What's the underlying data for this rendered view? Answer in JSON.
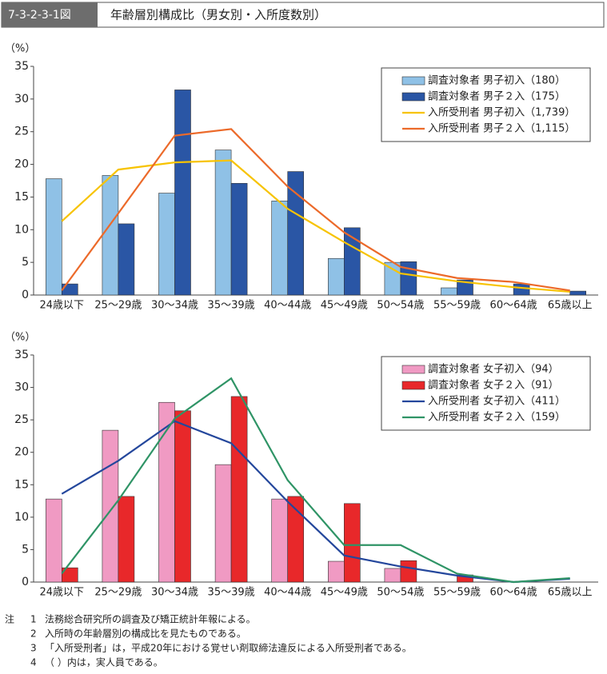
{
  "header": {
    "figure_number": "7-3-2-3-1図",
    "title": "年齢層別構成比（男女別・入所度数別）"
  },
  "chart_data": [
    {
      "type": "combo",
      "y_label": "（%）",
      "categories": [
        "24歳以下",
        "25～29歳",
        "30～34歳",
        "35～39歳",
        "40～44歳",
        "45～49歳",
        "50～54歳",
        "55～59歳",
        "60～64歳",
        "65歳以上"
      ],
      "series": [
        {
          "name": "調査対象者 男子初入（180）",
          "type": "bar",
          "color": "#8fc1e6",
          "values": [
            17.8,
            18.3,
            15.6,
            22.2,
            14.4,
            5.6,
            5.0,
            1.1,
            0,
            0
          ]
        },
        {
          "name": "調査対象者 男子２入（175）",
          "type": "bar",
          "color": "#2a56a5",
          "values": [
            1.7,
            10.9,
            31.4,
            17.1,
            18.9,
            10.3,
            5.1,
            2.3,
            1.7,
            0.6
          ]
        },
        {
          "name": "入所受刑者 男子初入（1,739）",
          "type": "line",
          "color": "#f7c300",
          "values": [
            11.3,
            19.2,
            20.3,
            20.6,
            13.2,
            8.1,
            3.3,
            2.1,
            1.2,
            0.5
          ]
        },
        {
          "name": "入所受刑者 男子２入（1,115）",
          "type": "line",
          "color": "#ec6a2a",
          "values": [
            0.7,
            12.5,
            24.4,
            25.4,
            16.6,
            9.6,
            4.3,
            2.6,
            2.0,
            0.7
          ]
        }
      ],
      "ylim": [
        0,
        35
      ],
      "yticks": [
        0,
        5,
        10,
        15,
        20,
        25,
        30,
        35
      ],
      "legend": "upper right"
    },
    {
      "type": "combo",
      "y_label": "（%）",
      "categories": [
        "24歳以下",
        "25～29歳",
        "30～34歳",
        "35～39歳",
        "40～44歳",
        "45～49歳",
        "50～54歳",
        "55～59歳",
        "60～64歳",
        "65歳以上"
      ],
      "series": [
        {
          "name": "調査対象者 女子初入（94）",
          "type": "bar",
          "color": "#f09ac3",
          "values": [
            12.8,
            23.4,
            27.7,
            18.1,
            12.8,
            3.2,
            2.1,
            0,
            0,
            0
          ]
        },
        {
          "name": "調査対象者 女子２入（91）",
          "type": "bar",
          "color": "#e8282a",
          "values": [
            2.2,
            13.2,
            26.4,
            28.6,
            13.2,
            12.1,
            3.3,
            1.1,
            0,
            0
          ]
        },
        {
          "name": "入所受刑者 女子初入（411）",
          "type": "line",
          "color": "#24479c",
          "values": [
            13.6,
            18.7,
            24.8,
            21.4,
            12.4,
            4.1,
            2.4,
            1.0,
            0,
            0.5
          ]
        },
        {
          "name": "入所受刑者 女子２入（159）",
          "type": "line",
          "color": "#2f9466",
          "values": [
            1.3,
            12.6,
            25.2,
            31.4,
            15.7,
            5.7,
            5.7,
            1.3,
            0,
            0.6
          ]
        }
      ],
      "ylim": [
        0,
        35
      ],
      "yticks": [
        0,
        5,
        10,
        15,
        20,
        25,
        30,
        35
      ],
      "legend": "upper right"
    }
  ],
  "notes": {
    "label": "注",
    "items": [
      {
        "number": "1",
        "text": "法務総合研究所の調査及び矯正統計年報による。"
      },
      {
        "number": "2",
        "text": "入所時の年齢層別の構成比を見たものである。"
      },
      {
        "number": "3",
        "text": "「入所受刑者」は，平成20年における覚せい剤取締法違反による入所受刑者である。"
      },
      {
        "number": "4",
        "text": "（ ）内は，実人員である。"
      }
    ]
  }
}
